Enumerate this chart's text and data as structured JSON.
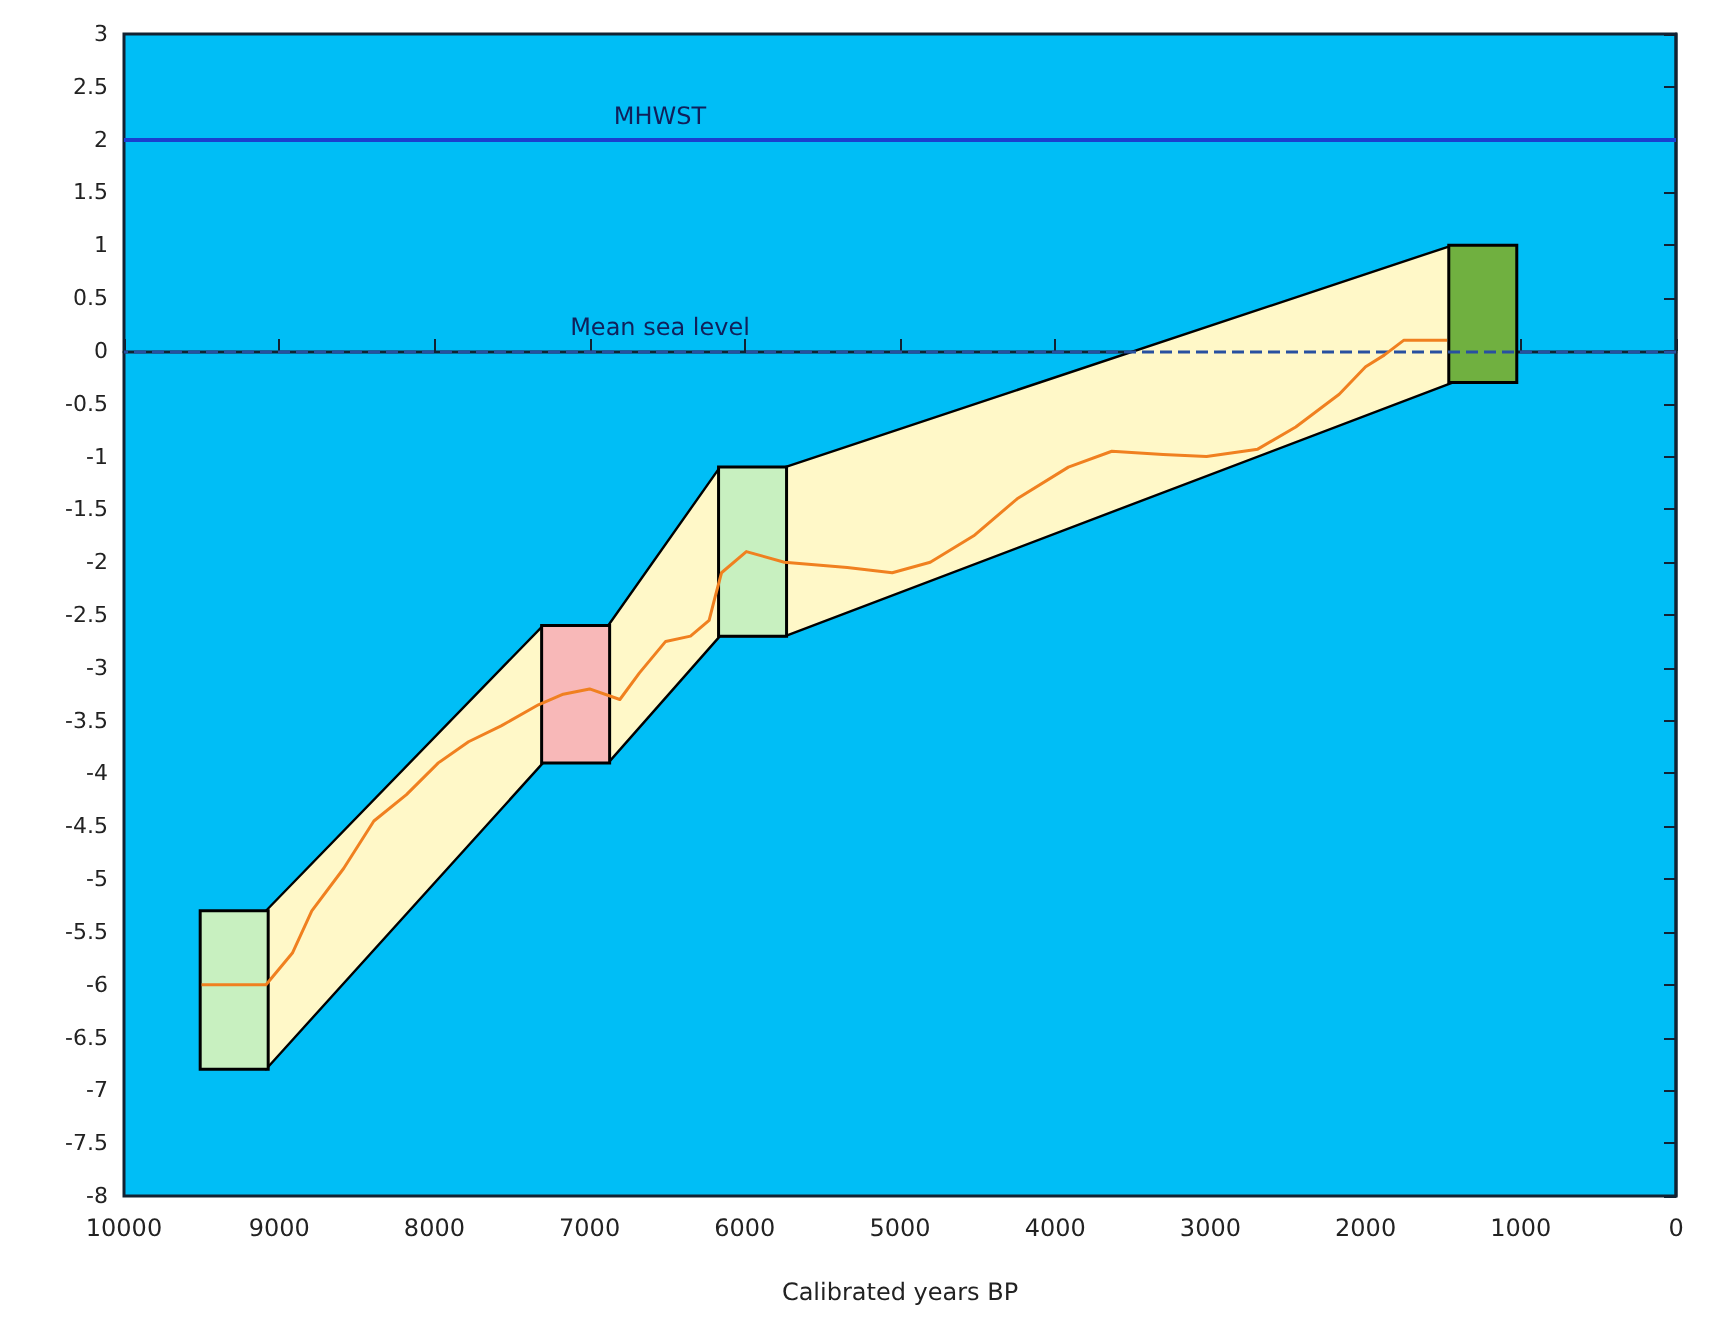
{
  "chart_data": {
    "type": "line",
    "xlabel": "Calibrated years BP",
    "xlim": [
      10000,
      0
    ],
    "xticks": [
      10000,
      9000,
      8000,
      7000,
      6000,
      5000,
      4000,
      3000,
      2000,
      1000,
      0
    ],
    "ylim": [
      -8,
      3
    ],
    "yticks": [
      -8,
      -7.5,
      -7,
      -6.5,
      -6,
      -5.5,
      -5,
      -4.5,
      -4,
      -3.5,
      -3,
      -2.5,
      -2,
      -1.5,
      -1,
      -0.5,
      0,
      0.5,
      1,
      1.5,
      2,
      2.5,
      3
    ],
    "grid": false,
    "series": [
      {
        "type": "area",
        "color": "#fff8c8",
        "x": [
          9085,
          7300,
          6880,
          6160,
          5740,
          1440
        ],
        "values": [
          null,
          null,
          null,
          null,
          null,
          null
        ],
        "upper": [
          -5.3,
          -2.6,
          -2.6,
          -1.1,
          -1.1,
          1.0
        ],
        "lower": [
          -6.8,
          -3.9,
          -3.9,
          -2.7,
          -2.7,
          -0.3
        ]
      },
      {
        "type": "bar",
        "x": [
          9290,
          7090,
          5950,
          1245
        ],
        "base": [
          -6.8,
          -3.9,
          -2.7,
          -0.3
        ],
        "values": [
          1.5,
          1.3,
          1.6,
          1.3
        ],
        "colors": [
          "#c8f0c0",
          "#f8b8b8",
          "#c8f0c0",
          "#70b040"
        ]
      },
      {
        "color": "#f08020",
        "marker": "none",
        "x": [
          9500,
          9085,
          8915,
          8790,
          8585,
          8390,
          8180,
          7975,
          7780,
          7570,
          7330,
          7170,
          7000,
          6805,
          6680,
          6510,
          6350,
          6230,
          6195,
          6150,
          5990,
          5745,
          5340,
          5050,
          4805,
          4525,
          4245,
          3915,
          3635,
          3305,
          3025,
          2695,
          2450,
          2170,
          2000,
          1880,
          1755,
          1475
        ],
        "values": [
          -6.0,
          -6.0,
          -5.7,
          -5.3,
          -4.9,
          -4.45,
          -4.2,
          -3.9,
          -3.7,
          -3.55,
          -3.35,
          -3.25,
          -3.2,
          -3.3,
          -3.05,
          -2.75,
          -2.7,
          -2.55,
          -2.35,
          -2.1,
          -1.9,
          -2.0,
          -2.05,
          -2.1,
          -2.0,
          -1.75,
          -1.4,
          -1.1,
          -0.95,
          -0.98,
          -1.0,
          -0.93,
          -0.72,
          -0.41,
          -0.15,
          -0.04,
          0.1,
          0.1
        ]
      }
    ],
    "ref_lines": [
      {
        "axis": "y",
        "value": 2,
        "label": "MHWST",
        "color": "#1a3fcf",
        "line_style": "solid"
      },
      {
        "axis": "y",
        "value": 0,
        "label": "Mean sea level",
        "color": "#2850a0",
        "line_style": "dashed"
      }
    ]
  }
}
